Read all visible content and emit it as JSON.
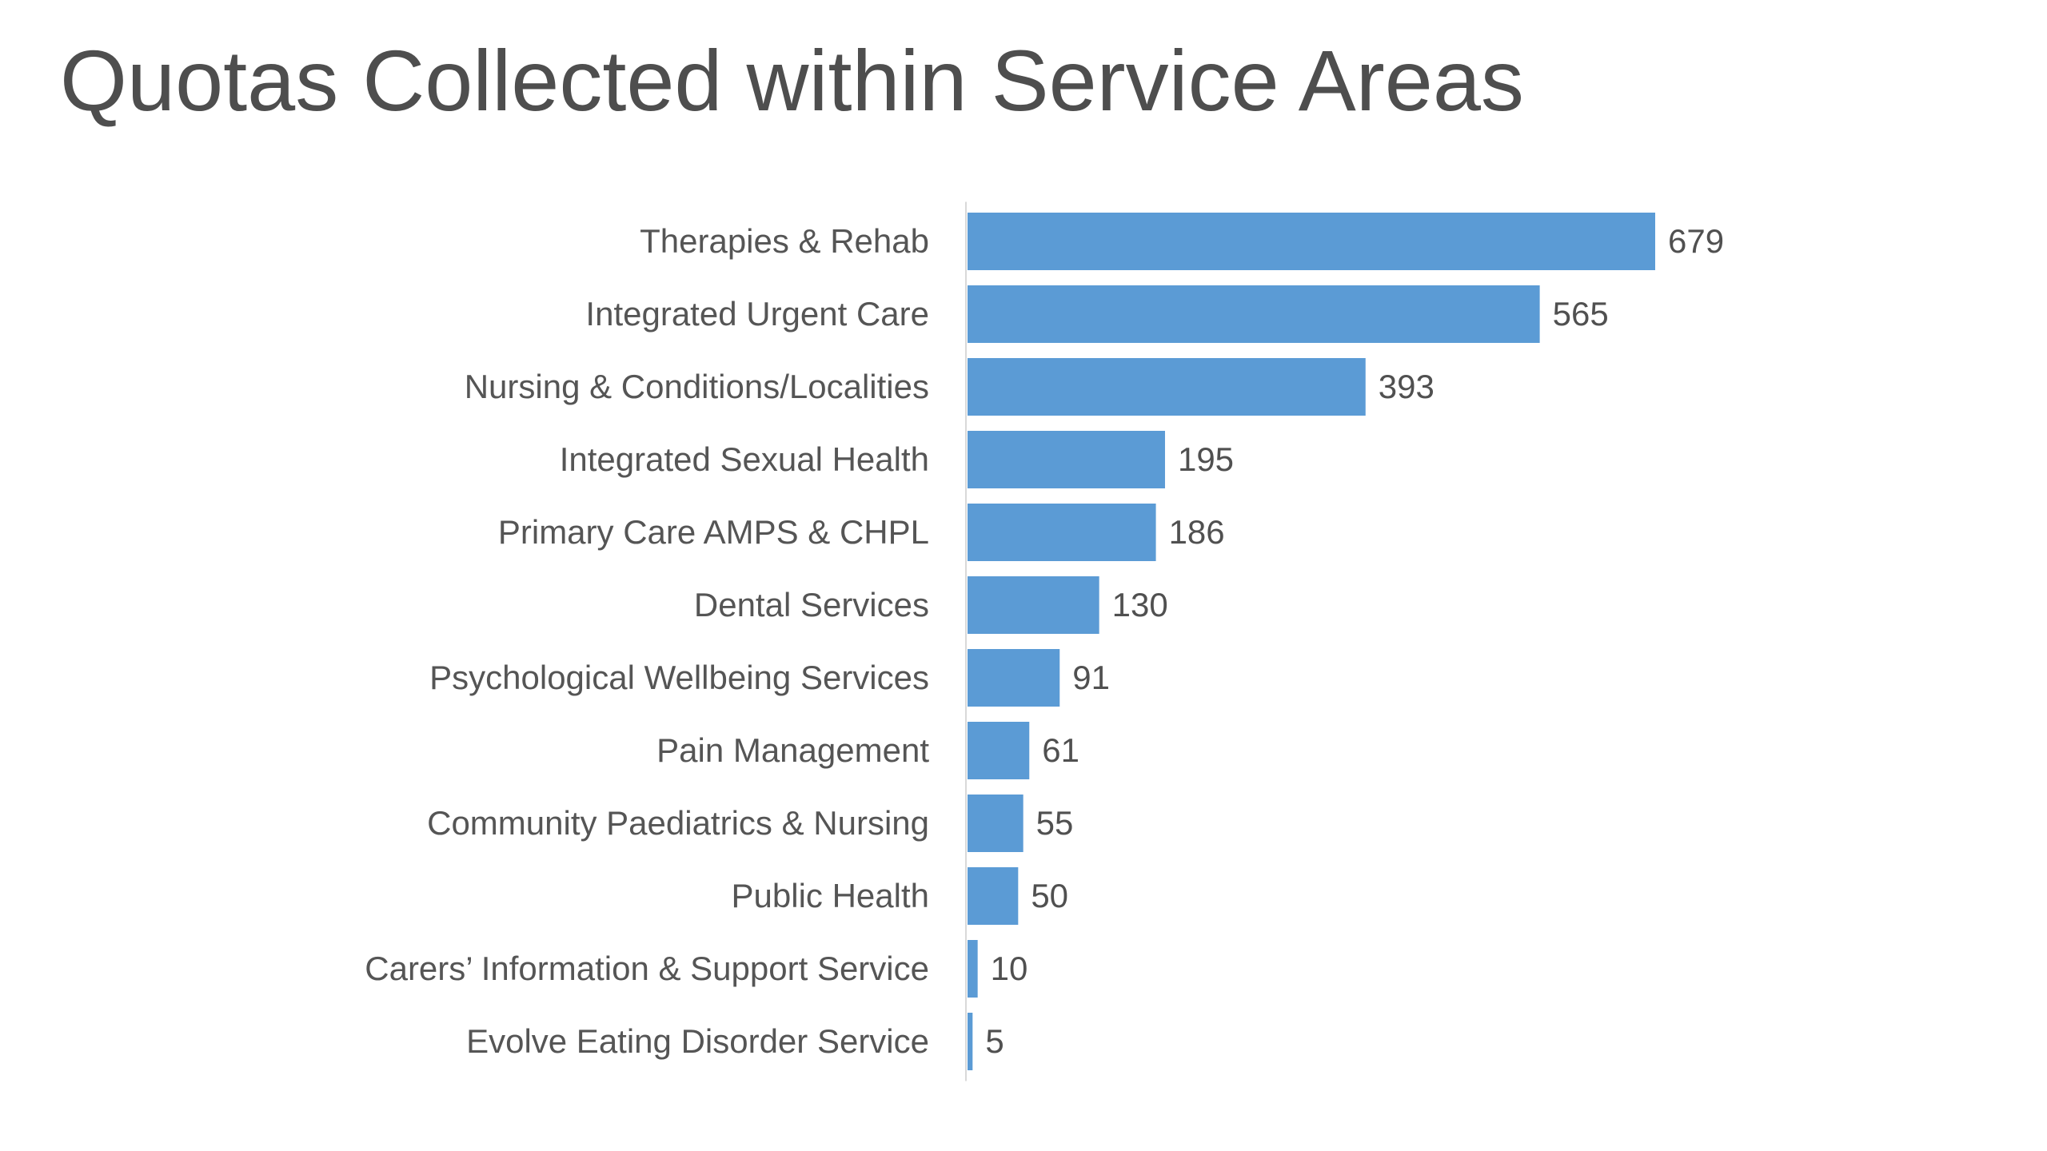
{
  "title": "Quotas Collected within Service Areas",
  "colors": {
    "bar": "#5b9bd5",
    "axis": "#d9d9d9",
    "text": "#555555"
  },
  "chart_data": {
    "type": "bar",
    "orientation": "horizontal",
    "title": "Quotas Collected within Service Areas",
    "categories": [
      "Therapies & Rehab",
      "Integrated Urgent Care",
      "Nursing & Conditions/Localities",
      "Integrated Sexual Health",
      "Primary Care AMPS & CHPL",
      "Dental Services",
      "Psychological Wellbeing Services",
      "Pain Management",
      "Community Paediatrics & Nursing",
      "Public Health",
      "Carers’ Information & Support Service",
      "Evolve Eating Disorder Service"
    ],
    "values": [
      679,
      565,
      393,
      195,
      186,
      130,
      91,
      61,
      55,
      50,
      10,
      5
    ],
    "data_labels": true,
    "xlim": [
      0,
      679
    ],
    "grid": false,
    "legend": "none"
  }
}
